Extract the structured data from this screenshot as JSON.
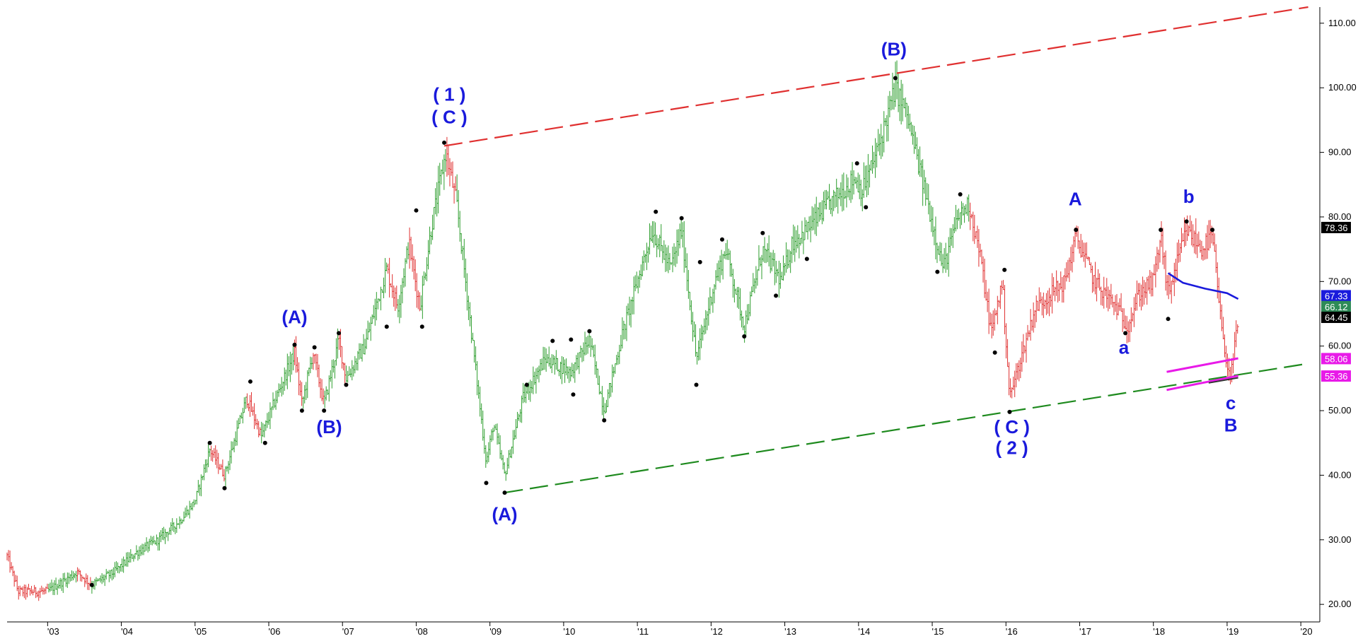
{
  "chart_data": {
    "type": "bar",
    "subtype": "ohlc-price-chart",
    "ylim": [
      17.5,
      112.5
    ],
    "x_range": [
      2002.45,
      2020.2
    ],
    "grid": false,
    "y_axis_position": "right",
    "y_ticks": [
      "20.00",
      "30.00",
      "40.00",
      "50.00",
      "60.00",
      "70.00",
      "80.00",
      "90.00",
      "100.00",
      "110.00"
    ],
    "x_ticks": [
      {
        "label": "'03",
        "year": 2003
      },
      {
        "label": "'04",
        "year": 2004
      },
      {
        "label": "'05",
        "year": 2005
      },
      {
        "label": "'06",
        "year": 2006
      },
      {
        "label": "'07",
        "year": 2007
      },
      {
        "label": "'08",
        "year": 2008
      },
      {
        "label": "'09",
        "year": 2009
      },
      {
        "label": "'10",
        "year": 2010
      },
      {
        "label": "'11",
        "year": 2011
      },
      {
        "label": "'12",
        "year": 2012
      },
      {
        "label": "'13",
        "year": 2013
      },
      {
        "label": "'14",
        "year": 2014
      },
      {
        "label": "'15",
        "year": 2015
      },
      {
        "label": "'16",
        "year": 2016
      },
      {
        "label": "'17",
        "year": 2017
      },
      {
        "label": "'18",
        "year": 2018
      },
      {
        "label": "'19",
        "year": 2019
      },
      {
        "label": "'20",
        "year": 2020
      }
    ],
    "colors": {
      "up": "#2e9e2e",
      "down": "#e03030",
      "blue": "#1a1adc",
      "magenta": "#e81ae8",
      "black": "#000000",
      "axis": "#000000"
    },
    "price_path": [
      {
        "x": 2002.45,
        "y": 27.5,
        "c": "red"
      },
      {
        "x": 2002.6,
        "y": 22,
        "c": "red"
      },
      {
        "x": 2003.0,
        "y": 22,
        "c": "red"
      },
      {
        "x": 2003.4,
        "y": 25,
        "c": "green"
      },
      {
        "x": 2003.6,
        "y": 23,
        "c": "red"
      },
      {
        "x": 2003.9,
        "y": 25,
        "c": "green"
      },
      {
        "x": 2004.2,
        "y": 28,
        "c": "green"
      },
      {
        "x": 2004.5,
        "y": 30,
        "c": "green"
      },
      {
        "x": 2004.8,
        "y": 33,
        "c": "green"
      },
      {
        "x": 2005.0,
        "y": 36,
        "c": "green"
      },
      {
        "x": 2005.2,
        "y": 44,
        "c": "green"
      },
      {
        "x": 2005.4,
        "y": 40,
        "c": "red"
      },
      {
        "x": 2005.7,
        "y": 52,
        "c": "green"
      },
      {
        "x": 2005.9,
        "y": 46,
        "c": "red"
      },
      {
        "x": 2006.1,
        "y": 52,
        "c": "green"
      },
      {
        "x": 2006.35,
        "y": 59,
        "c": "green"
      },
      {
        "x": 2006.45,
        "y": 51,
        "c": "red"
      },
      {
        "x": 2006.6,
        "y": 59,
        "c": "green"
      },
      {
        "x": 2006.75,
        "y": 51,
        "c": "red"
      },
      {
        "x": 2006.95,
        "y": 61,
        "c": "green"
      },
      {
        "x": 2007.05,
        "y": 55,
        "c": "red"
      },
      {
        "x": 2007.3,
        "y": 60,
        "c": "green"
      },
      {
        "x": 2007.6,
        "y": 72,
        "c": "green"
      },
      {
        "x": 2007.75,
        "y": 66,
        "c": "red"
      },
      {
        "x": 2007.9,
        "y": 76,
        "c": "green"
      },
      {
        "x": 2008.05,
        "y": 66,
        "c": "red"
      },
      {
        "x": 2008.2,
        "y": 78,
        "c": "green"
      },
      {
        "x": 2008.4,
        "y": 90,
        "c": "green"
      },
      {
        "x": 2008.55,
        "y": 82,
        "c": "red"
      },
      {
        "x": 2008.75,
        "y": 62,
        "c": "green"
      },
      {
        "x": 2008.95,
        "y": 42,
        "c": "green"
      },
      {
        "x": 2009.05,
        "y": 48,
        "c": "green"
      },
      {
        "x": 2009.2,
        "y": 40,
        "c": "green"
      },
      {
        "x": 2009.45,
        "y": 52,
        "c": "green"
      },
      {
        "x": 2009.75,
        "y": 58,
        "c": "green"
      },
      {
        "x": 2010.1,
        "y": 56,
        "c": "green"
      },
      {
        "x": 2010.35,
        "y": 61,
        "c": "green"
      },
      {
        "x": 2010.55,
        "y": 50,
        "c": "green"
      },
      {
        "x": 2010.8,
        "y": 62,
        "c": "green"
      },
      {
        "x": 2011.2,
        "y": 78,
        "c": "green"
      },
      {
        "x": 2011.45,
        "y": 72,
        "c": "green"
      },
      {
        "x": 2011.6,
        "y": 78,
        "c": "green"
      },
      {
        "x": 2011.8,
        "y": 58,
        "c": "green"
      },
      {
        "x": 2012.05,
        "y": 70,
        "c": "green"
      },
      {
        "x": 2012.2,
        "y": 75,
        "c": "green"
      },
      {
        "x": 2012.45,
        "y": 63,
        "c": "green"
      },
      {
        "x": 2012.7,
        "y": 75,
        "c": "green"
      },
      {
        "x": 2012.95,
        "y": 70,
        "c": "green"
      },
      {
        "x": 2013.1,
        "y": 76,
        "c": "green"
      },
      {
        "x": 2013.3,
        "y": 78,
        "c": "green"
      },
      {
        "x": 2013.6,
        "y": 82,
        "c": "green"
      },
      {
        "x": 2013.95,
        "y": 86,
        "c": "green"
      },
      {
        "x": 2014.05,
        "y": 84,
        "c": "green"
      },
      {
        "x": 2014.25,
        "y": 90,
        "c": "green"
      },
      {
        "x": 2014.5,
        "y": 100,
        "c": "green"
      },
      {
        "x": 2014.65,
        "y": 96,
        "c": "green"
      },
      {
        "x": 2014.9,
        "y": 84,
        "c": "green"
      },
      {
        "x": 2015.15,
        "y": 72,
        "c": "green"
      },
      {
        "x": 2015.35,
        "y": 80,
        "c": "green"
      },
      {
        "x": 2015.5,
        "y": 82,
        "c": "green"
      },
      {
        "x": 2015.65,
        "y": 74,
        "c": "red"
      },
      {
        "x": 2015.8,
        "y": 62,
        "c": "red"
      },
      {
        "x": 2015.95,
        "y": 70,
        "c": "red"
      },
      {
        "x": 2016.05,
        "y": 52,
        "c": "red"
      },
      {
        "x": 2016.2,
        "y": 58,
        "c": "red"
      },
      {
        "x": 2016.4,
        "y": 66,
        "c": "red"
      },
      {
        "x": 2016.6,
        "y": 68,
        "c": "red"
      },
      {
        "x": 2016.8,
        "y": 70,
        "c": "red"
      },
      {
        "x": 2016.95,
        "y": 77,
        "c": "red"
      },
      {
        "x": 2017.2,
        "y": 70,
        "c": "red"
      },
      {
        "x": 2017.5,
        "y": 66,
        "c": "red"
      },
      {
        "x": 2017.65,
        "y": 63,
        "c": "red"
      },
      {
        "x": 2017.8,
        "y": 68,
        "c": "red"
      },
      {
        "x": 2018.0,
        "y": 70,
        "c": "red"
      },
      {
        "x": 2018.1,
        "y": 77,
        "c": "red"
      },
      {
        "x": 2018.2,
        "y": 68,
        "c": "red"
      },
      {
        "x": 2018.35,
        "y": 74,
        "c": "red"
      },
      {
        "x": 2018.45,
        "y": 78,
        "c": "red"
      },
      {
        "x": 2018.65,
        "y": 75,
        "c": "red"
      },
      {
        "x": 2018.8,
        "y": 77,
        "c": "red"
      },
      {
        "x": 2018.95,
        "y": 60,
        "c": "red"
      },
      {
        "x": 2019.05,
        "y": 55,
        "c": "red"
      },
      {
        "x": 2019.15,
        "y": 64,
        "c": "red"
      }
    ],
    "pivots": [
      {
        "x": 2003.6,
        "y": 23
      },
      {
        "x": 2005.2,
        "y": 45
      },
      {
        "x": 2005.4,
        "y": 38
      },
      {
        "x": 2005.75,
        "y": 54.5
      },
      {
        "x": 2005.95,
        "y": 45
      },
      {
        "x": 2006.35,
        "y": 60.2
      },
      {
        "x": 2006.45,
        "y": 50
      },
      {
        "x": 2006.62,
        "y": 59.8
      },
      {
        "x": 2006.75,
        "y": 50
      },
      {
        "x": 2006.95,
        "y": 62
      },
      {
        "x": 2007.05,
        "y": 54
      },
      {
        "x": 2007.6,
        "y": 63
      },
      {
        "x": 2008.0,
        "y": 81
      },
      {
        "x": 2008.08,
        "y": 63
      },
      {
        "x": 2008.38,
        "y": 91.5
      },
      {
        "x": 2008.95,
        "y": 38.8
      },
      {
        "x": 2009.2,
        "y": 37.3
      },
      {
        "x": 2009.5,
        "y": 54
      },
      {
        "x": 2009.85,
        "y": 60.8
      },
      {
        "x": 2010.1,
        "y": 61
      },
      {
        "x": 2010.13,
        "y": 52.5
      },
      {
        "x": 2010.35,
        "y": 62.3
      },
      {
        "x": 2010.55,
        "y": 48.5
      },
      {
        "x": 2011.25,
        "y": 80.8
      },
      {
        "x": 2011.6,
        "y": 79.8
      },
      {
        "x": 2011.8,
        "y": 54
      },
      {
        "x": 2011.85,
        "y": 73
      },
      {
        "x": 2012.15,
        "y": 76.5
      },
      {
        "x": 2012.45,
        "y": 61.5
      },
      {
        "x": 2012.7,
        "y": 77.5
      },
      {
        "x": 2012.88,
        "y": 67.8
      },
      {
        "x": 2013.3,
        "y": 73.5
      },
      {
        "x": 2013.98,
        "y": 88.3
      },
      {
        "x": 2014.1,
        "y": 81.5
      },
      {
        "x": 2014.5,
        "y": 101.5
      },
      {
        "x": 2015.07,
        "y": 71.5
      },
      {
        "x": 2015.38,
        "y": 83.5
      },
      {
        "x": 2015.85,
        "y": 59
      },
      {
        "x": 2015.98,
        "y": 71.8
      },
      {
        "x": 2016.05,
        "y": 49.8
      },
      {
        "x": 2016.95,
        "y": 78
      },
      {
        "x": 2017.62,
        "y": 62
      },
      {
        "x": 2018.1,
        "y": 78
      },
      {
        "x": 2018.2,
        "y": 64.2
      },
      {
        "x": 2018.45,
        "y": 79.3
      },
      {
        "x": 2018.8,
        "y": 78
      }
    ],
    "red_channel": {
      "from": {
        "x": 2008.38,
        "y": 91
      },
      "to": {
        "x": 2020.1,
        "y": 112.5
      }
    },
    "green_channel": {
      "from": {
        "x": 2009.2,
        "y": 37.3
      },
      "to": {
        "x": 2020.1,
        "y": 57.3
      }
    },
    "blue_ma": [
      {
        "x": 2018.2,
        "y": 71.3
      },
      {
        "x": 2018.4,
        "y": 69.8
      },
      {
        "x": 2018.7,
        "y": 68.9
      },
      {
        "x": 2019.0,
        "y": 68.2
      },
      {
        "x": 2019.15,
        "y": 67.3
      }
    ],
    "magenta_upper": [
      {
        "x": 2018.18,
        "y": 56.0
      },
      {
        "x": 2019.15,
        "y": 58.1
      }
    ],
    "magenta_lower": [
      {
        "x": 2018.18,
        "y": 53.2
      },
      {
        "x": 2019.15,
        "y": 55.4
      }
    ],
    "black_short": [
      {
        "x": 2018.75,
        "y": 54.3
      },
      {
        "x": 2019.15,
        "y": 55.1
      }
    ],
    "price_badges": [
      {
        "text": "78.36",
        "y": 78.36,
        "bg": "#000000",
        "fg": "#ffffff"
      },
      {
        "text": "67.33",
        "y": 67.8,
        "bg": "#1a1adc",
        "fg": "#ffffff"
      },
      {
        "text": "66.12",
        "y": 66.12,
        "bg": "#2e8b57",
        "fg": "#ffffff"
      },
      {
        "text": "64.45",
        "y": 64.45,
        "bg": "#000000",
        "fg": "#ffffff"
      },
      {
        "text": "58.06",
        "y": 58.06,
        "bg": "#e81ae8",
        "fg": "#ffffff"
      },
      {
        "text": "55.36",
        "y": 55.36,
        "bg": "#e81ae8",
        "fg": "#ffffff"
      }
    ],
    "annotations": [
      {
        "text": "(A)",
        "x": 2006.35,
        "y": 63.5
      },
      {
        "text": "(B)",
        "x": 2006.82,
        "y": 46.5
      },
      {
        "text": "( 1 )",
        "x": 2008.45,
        "y": 98.0
      },
      {
        "text": "( C )",
        "x": 2008.45,
        "y": 94.5
      },
      {
        "text": "(B)",
        "x": 2014.48,
        "y": 105.0
      },
      {
        "text": "(A)",
        "x": 2009.2,
        "y": 33.0
      },
      {
        "text": "( C )",
        "x": 2016.08,
        "y": 46.5
      },
      {
        "text": "( 2 )",
        "x": 2016.08,
        "y": 43.3
      },
      {
        "text": "A",
        "x": 2016.94,
        "y": 81.8
      },
      {
        "text": "a",
        "x": 2017.6,
        "y": 58.8
      },
      {
        "text": "b",
        "x": 2018.48,
        "y": 82.2
      },
      {
        "text": "c",
        "x": 2019.05,
        "y": 50.2
      },
      {
        "text": "B",
        "x": 2019.05,
        "y": 46.8
      }
    ]
  }
}
